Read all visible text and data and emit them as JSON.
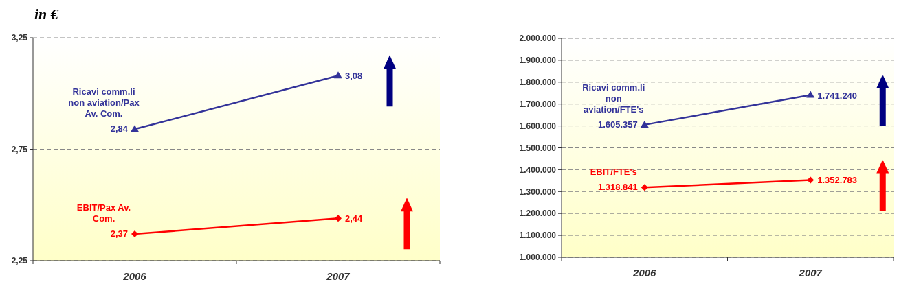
{
  "chart_data": [
    {
      "type": "line",
      "title": "in €",
      "categories": [
        "2006",
        "2007"
      ],
      "series": [
        {
          "name": "Ricavi comm.li non aviation/Pax Av. Com.",
          "color": "#333399",
          "marker": "triangle",
          "values": [
            2.84,
            3.08
          ],
          "value_labels": [
            "2,84",
            "3,08"
          ]
        },
        {
          "name": "EBIT/Pax Av. Com.",
          "color": "#ff0000",
          "marker": "diamond",
          "values": [
            2.37,
            2.44
          ],
          "value_labels": [
            "2,37",
            "2,44"
          ]
        }
      ],
      "ylim": [
        2.25,
        3.25
      ],
      "yticks": [
        {
          "value": 2.25,
          "label": "2,25"
        },
        {
          "value": 2.75,
          "label": "2,75"
        },
        {
          "value": 3.25,
          "label": "3,25"
        }
      ],
      "grid": "y"
    },
    {
      "type": "line",
      "categories": [
        "2006",
        "2007"
      ],
      "series": [
        {
          "name": "Ricavi comm.li non aviation/FTE's",
          "color": "#333399",
          "marker": "triangle",
          "values": [
            1605357,
            1741240
          ],
          "value_labels": [
            "1.605.357",
            "1.741.240"
          ]
        },
        {
          "name": "EBIT/FTE's",
          "color": "#ff0000",
          "marker": "diamond",
          "values": [
            1318841,
            1352783
          ],
          "value_labels": [
            "1.318.841",
            "1.352.783"
          ]
        }
      ],
      "ylim": [
        1000000,
        2000000
      ],
      "yticks": [
        {
          "value": 1000000,
          "label": "1.000.000"
        },
        {
          "value": 1100000,
          "label": "1.100.000"
        },
        {
          "value": 1200000,
          "label": "1.200.000"
        },
        {
          "value": 1300000,
          "label": "1.300.000"
        },
        {
          "value": 1400000,
          "label": "1.400.000"
        },
        {
          "value": 1500000,
          "label": "1.500.000"
        },
        {
          "value": 1600000,
          "label": "1.600.000"
        },
        {
          "value": 1700000,
          "label": "1.700.000"
        },
        {
          "value": 1800000,
          "label": "1.800.000"
        },
        {
          "value": 1900000,
          "label": "1.900.000"
        },
        {
          "value": 2000000,
          "label": "2.000.000"
        }
      ],
      "grid": "y"
    }
  ]
}
